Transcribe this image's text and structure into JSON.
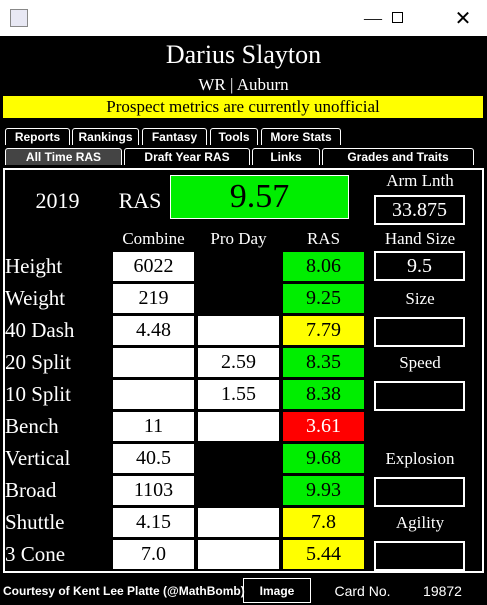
{
  "header": {
    "name": "Darius Slayton",
    "subtitle": "WR | Auburn",
    "banner": "Prospect metrics are currently unofficial"
  },
  "tabs": {
    "row1": [
      "Reports",
      "Rankings",
      "Fantasy",
      "Tools",
      "More Stats"
    ],
    "row2": [
      "All Time RAS",
      "Draft Year RAS",
      "Links",
      "Grades and Traits"
    ]
  },
  "summary": {
    "year": "2019",
    "ras_label": "RAS",
    "ras": "9.57",
    "arm_label": "Arm Lnth",
    "arm": "33.875",
    "hand_label": "Hand Size",
    "hand": "9.5"
  },
  "table": {
    "columns": [
      "Combine",
      "Pro Day",
      "RAS"
    ],
    "rows": [
      [
        "Height",
        "6022",
        null,
        "8.06"
      ],
      [
        "Weight",
        "219",
        null,
        "9.25"
      ],
      [
        "40 Dash",
        "4.48",
        null,
        "7.79"
      ],
      [
        "20 Split",
        null,
        "2.59",
        "8.35"
      ],
      [
        "10 Split",
        null,
        "1.55",
        "8.38"
      ],
      [
        "Bench",
        "11",
        null,
        "3.61"
      ],
      [
        "Vertical",
        "40.5",
        null,
        "9.68"
      ],
      [
        "Broad",
        "1103",
        null,
        "9.93"
      ],
      [
        "Shuttle",
        "4.15",
        null,
        "7.8"
      ],
      [
        "3 Cone",
        "7.0",
        null,
        "5.44"
      ]
    ]
  },
  "side_labels": [
    "Size",
    "Speed",
    "Explosion",
    "Agility"
  ],
  "footer": {
    "credit": "Courtesy of Kent Lee Platte (@MathBomb)",
    "button": "Image",
    "card_label": "Card No.",
    "card": "19872"
  }
}
